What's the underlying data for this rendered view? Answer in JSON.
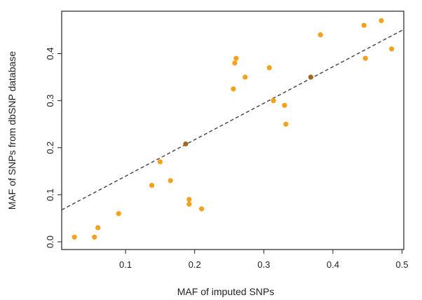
{
  "chart_data": {
    "type": "scatter",
    "title": "",
    "xlabel": "MAF of imputed SNPs",
    "ylabel": "MAF of SNPs from dbSNP database",
    "xlim": [
      0.0,
      0.5
    ],
    "ylim": [
      0.0,
      0.45
    ],
    "x_ticks": [
      "0.1",
      "0.2",
      "0.3",
      "0.4",
      "0.5"
    ],
    "y_ticks": [
      "0.0",
      "0.1",
      "0.2",
      "0.3",
      "0.4"
    ],
    "grid": false,
    "legend": "none",
    "point_color": "#f5a11c",
    "highlight_color": "#a5691e",
    "line_color": "#404040",
    "fit_line": {
      "style": "dashed",
      "slope": 0.775,
      "intercept": 0.062
    },
    "series": [
      {
        "points": [
          {
            "x": 0.026,
            "y": 0.01
          },
          {
            "x": 0.055,
            "y": 0.01
          },
          {
            "x": 0.06,
            "y": 0.03
          },
          {
            "x": 0.09,
            "y": 0.06
          },
          {
            "x": 0.138,
            "y": 0.12
          },
          {
            "x": 0.15,
            "y": 0.17
          },
          {
            "x": 0.165,
            "y": 0.13
          },
          {
            "x": 0.187,
            "y": 0.208,
            "highlight": true
          },
          {
            "x": 0.192,
            "y": 0.09
          },
          {
            "x": 0.192,
            "y": 0.08
          },
          {
            "x": 0.21,
            "y": 0.07
          },
          {
            "x": 0.256,
            "y": 0.325
          },
          {
            "x": 0.258,
            "y": 0.38
          },
          {
            "x": 0.26,
            "y": 0.39
          },
          {
            "x": 0.273,
            "y": 0.35
          },
          {
            "x": 0.308,
            "y": 0.37
          },
          {
            "x": 0.314,
            "y": 0.3
          },
          {
            "x": 0.33,
            "y": 0.29
          },
          {
            "x": 0.332,
            "y": 0.25
          },
          {
            "x": 0.368,
            "y": 0.35,
            "highlight": true
          },
          {
            "x": 0.382,
            "y": 0.44
          },
          {
            "x": 0.445,
            "y": 0.46
          },
          {
            "x": 0.447,
            "y": 0.39
          },
          {
            "x": 0.47,
            "y": 0.47
          },
          {
            "x": 0.485,
            "y": 0.41
          }
        ]
      }
    ]
  }
}
